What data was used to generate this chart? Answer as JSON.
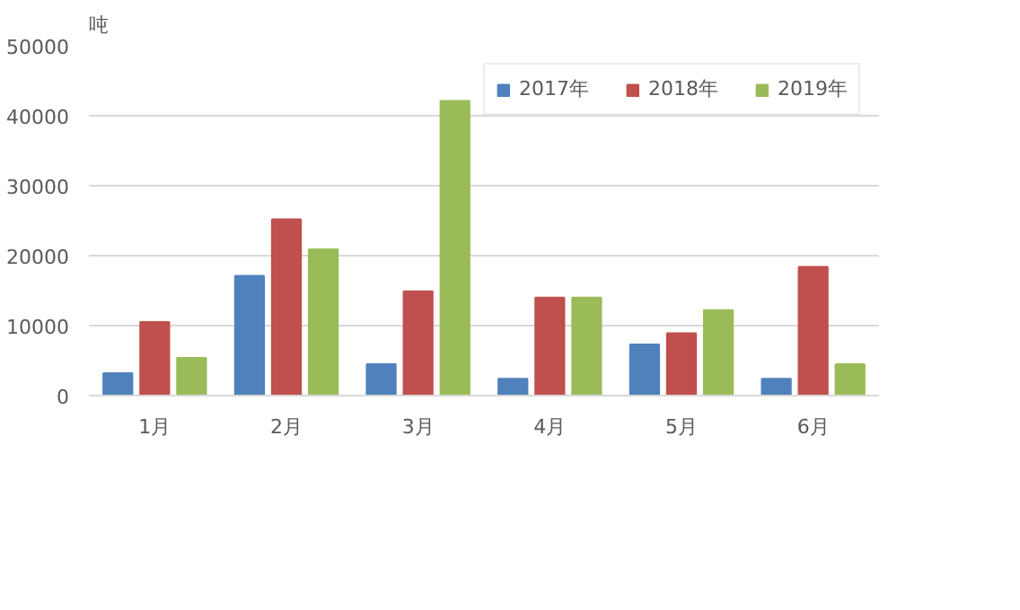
{
  "chart_data": {
    "type": "bar",
    "ylabel": "吨",
    "categories": [
      "1月",
      "2月",
      "3月",
      "4月",
      "5月",
      "6月"
    ],
    "series": [
      {
        "name": "2017年",
        "color": "#4f81bd",
        "values": [
          3200,
          17100,
          4500,
          2400,
          7300,
          2400
        ]
      },
      {
        "name": "2018年",
        "color": "#c0504d",
        "values": [
          10500,
          25200,
          14900,
          14000,
          8900,
          18400
        ]
      },
      {
        "name": "2019年",
        "color": "#9bbb59",
        "values": [
          5400,
          20900,
          42100,
          14000,
          12200,
          4500
        ]
      }
    ],
    "ylim": [
      0,
      50000
    ],
    "yticks": [
      0,
      10000,
      20000,
      30000,
      40000,
      50000
    ],
    "grid": "y",
    "legend": "top right"
  }
}
